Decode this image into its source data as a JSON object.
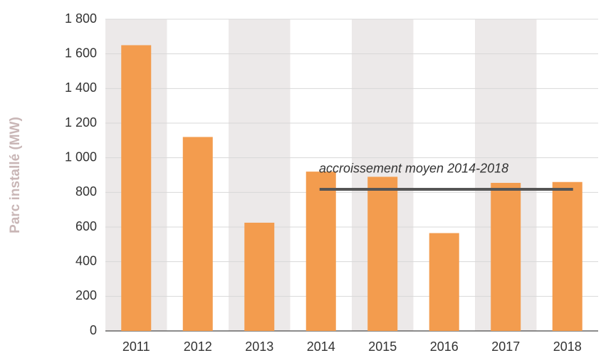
{
  "chart_data": {
    "type": "bar",
    "ylabel": "Parc installé (MW)",
    "categories": [
      "2011",
      "2012",
      "2013",
      "2014",
      "2015",
      "2016",
      "2017",
      "2018"
    ],
    "values": [
      1650,
      1120,
      625,
      920,
      890,
      565,
      855,
      860
    ],
    "color": "#f39c4e",
    "ylim": [
      0,
      1800
    ],
    "yticks": [
      0,
      200,
      400,
      600,
      800,
      {
        "value": 1000,
        "label": "1 000"
      },
      {
        "value": 1200,
        "label": "1 200"
      },
      {
        "value": 1400,
        "label": "1 400"
      },
      {
        "value": 1600,
        "label": "1 600"
      },
      {
        "value": 1800,
        "label": "1 800"
      }
    ],
    "grid": true,
    "annotation": {
      "text": "accroissement moyen 2014-2018",
      "value": 818,
      "color": "#555555"
    }
  }
}
